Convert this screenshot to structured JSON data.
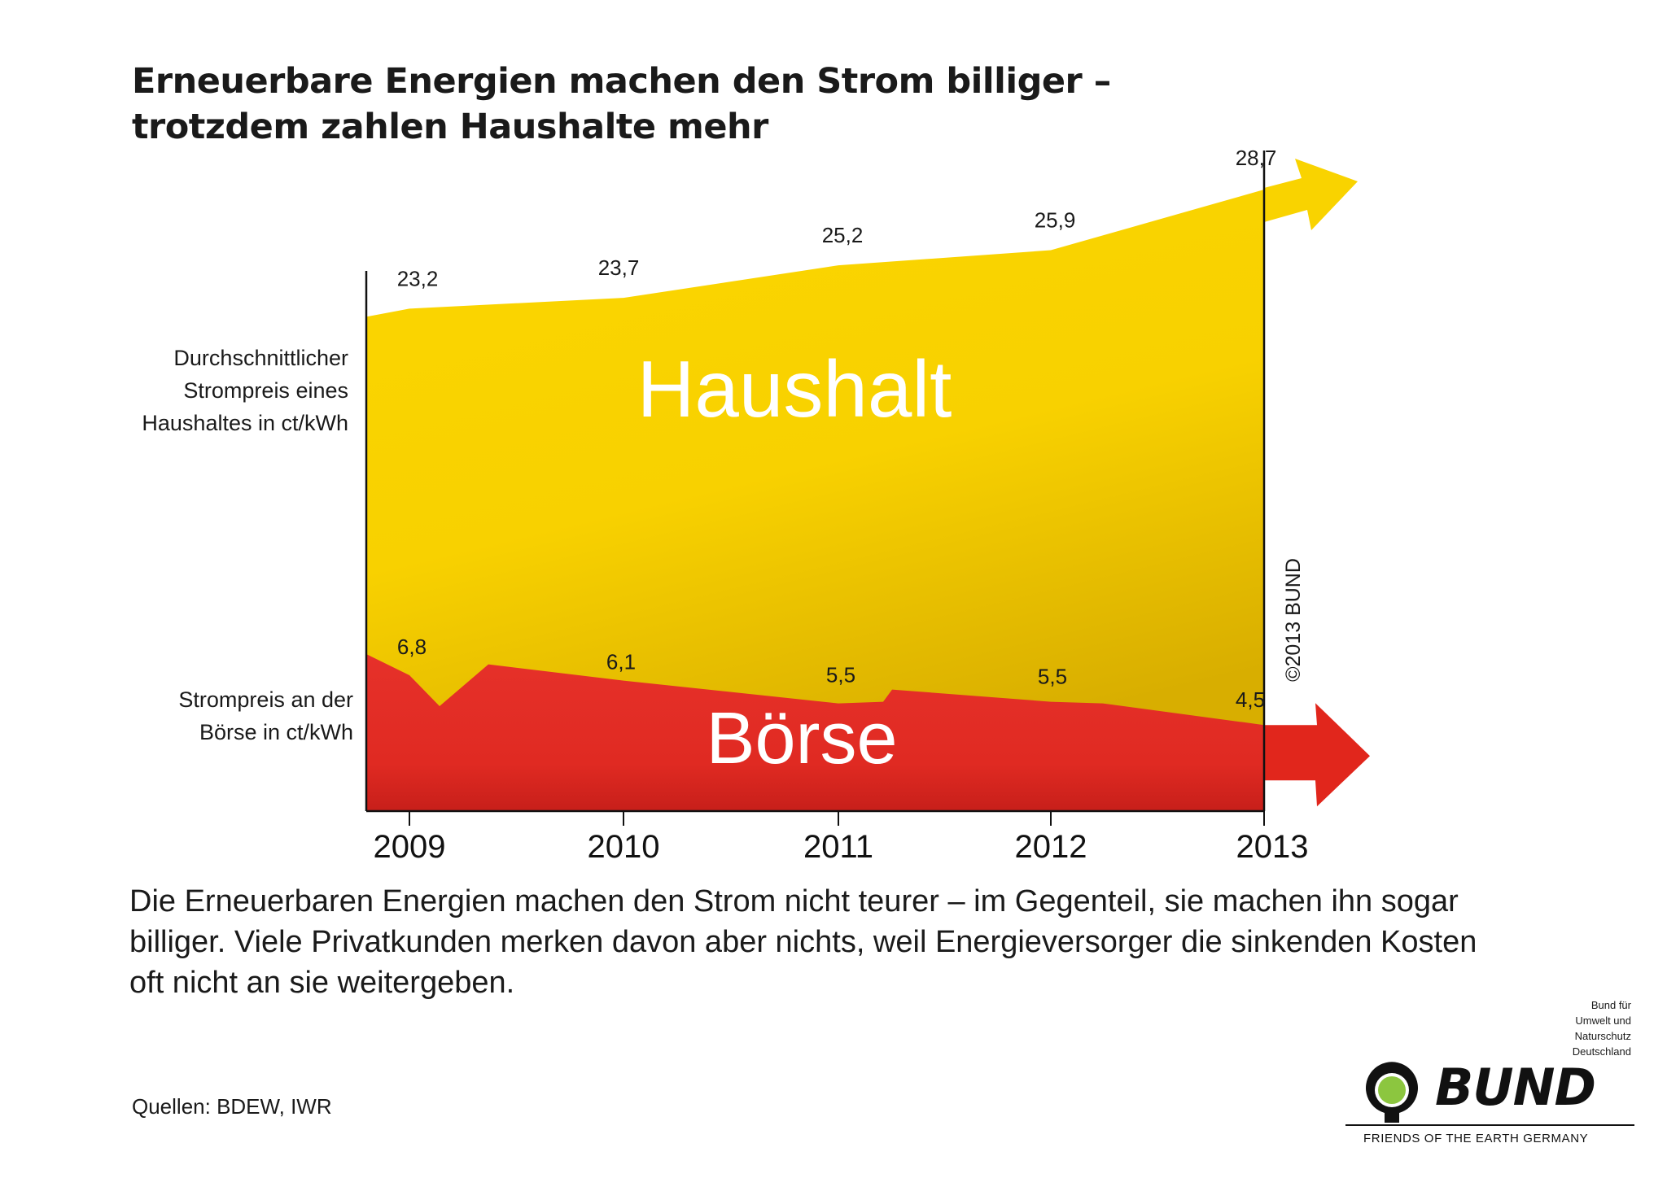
{
  "title": {
    "line1": "Erneuerbare Energien machen den Strom billiger –",
    "line2": "trotzdem zahlen Haushalte mehr"
  },
  "axis_labels": {
    "household": [
      "Durchschnittlicher",
      "Strompreis eines",
      "Haushaltes in ct/kWh"
    ],
    "exchange": [
      "Strompreis an der",
      "Börse in ct/kWh"
    ]
  },
  "chart_data": {
    "type": "area",
    "categories": [
      "2009",
      "2010",
      "2011",
      "2012",
      "2013"
    ],
    "series": [
      {
        "name": "Haushalt",
        "values": [
          23.2,
          23.7,
          25.2,
          25.9,
          28.7
        ],
        "value_labels": [
          "23,2",
          "23,7",
          "25,2",
          "25,9",
          "28,7"
        ],
        "color": "#f9d300"
      },
      {
        "name": "Börse",
        "values": [
          6.8,
          6.1,
          5.5,
          5.5,
          4.5
        ],
        "value_labels": [
          "6,8",
          "6,1",
          "5,5",
          "5,5",
          "4,5"
        ],
        "color": "#e1261c"
      }
    ],
    "y_range": [
      0,
      29
    ],
    "grid": false,
    "legend": "none"
  },
  "copyright": "©2013 BUND",
  "description": [
    "Die Erneuerbaren Energien machen den Strom nicht teurer – im Gegenteil, sie machen ihn sogar",
    "billiger. Viele Privatkunden merken davon aber nichts, weil Energieversorger die sinkenden Kosten",
    "oft nicht an sie weitergeben."
  ],
  "sources": "Quellen: BDEW, IWR",
  "org": {
    "lines": [
      "Bund für",
      "Umwelt und",
      "Naturschutz",
      "Deutschland"
    ],
    "logo_text": "BUND",
    "tagline": "FRIENDS OF THE EARTH GERMANY",
    "logo_green": "#8cc63f"
  }
}
